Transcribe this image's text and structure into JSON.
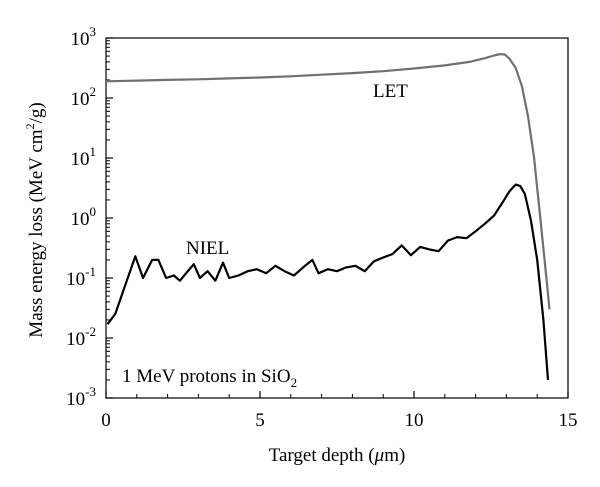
{
  "chart_data": {
    "type": "line",
    "xlabel_pre": "Target depth (",
    "xlabel_mu": "μ",
    "xlabel_post": "m)",
    "ylabel_pre": "Mass energy loss (MeV cm",
    "ylabel_sup": "2",
    "ylabel_post": "/g)",
    "annotation_pre": "1 MeV protons in SiO",
    "annotation_sub": "2",
    "xlim": [
      0,
      15
    ],
    "ylim_log10": [
      -3,
      3
    ],
    "y_scale": "log",
    "grid": false,
    "x_ticks": [
      "0",
      "5",
      "10",
      "15"
    ],
    "y_ticks": [
      {
        "base": "10",
        "exp": "3"
      },
      {
        "base": "10",
        "exp": "2"
      },
      {
        "base": "10",
        "exp": "1"
      },
      {
        "base": "10",
        "exp": "0"
      },
      {
        "base": "10",
        "exp": "-1"
      },
      {
        "base": "10",
        "exp": "-2"
      },
      {
        "base": "10",
        "exp": "-3"
      }
    ],
    "series": [
      {
        "name": "LET",
        "color": "#707070",
        "x": [
          0.0,
          1.0,
          2.0,
          3.0,
          4.0,
          5.0,
          6.0,
          7.0,
          8.0,
          9.0,
          10.0,
          11.0,
          11.8,
          12.3,
          12.6,
          12.8,
          12.95,
          13.1,
          13.3,
          13.5,
          13.7,
          13.9,
          14.1,
          14.3,
          14.4
        ],
        "y": [
          190,
          195,
          200,
          205,
          212,
          220,
          230,
          245,
          260,
          280,
          310,
          350,
          400,
          460,
          510,
          540,
          530,
          450,
          320,
          160,
          50,
          10,
          1,
          0.1,
          0.03
        ]
      },
      {
        "name": "NIEL",
        "color": "#000000",
        "x": [
          0.05,
          0.3,
          0.6,
          0.95,
          1.2,
          1.5,
          1.7,
          1.95,
          2.2,
          2.4,
          2.6,
          2.85,
          3.05,
          3.3,
          3.55,
          3.8,
          4.0,
          4.3,
          4.6,
          4.9,
          5.2,
          5.5,
          5.8,
          6.1,
          6.4,
          6.7,
          6.9,
          7.2,
          7.5,
          7.8,
          8.1,
          8.4,
          8.7,
          9.0,
          9.3,
          9.6,
          9.9,
          10.2,
          10.5,
          10.8,
          11.1,
          11.4,
          11.7,
          12.0,
          12.3,
          12.6,
          12.9,
          13.1,
          13.3,
          13.45,
          13.6,
          13.8,
          14.0,
          14.2,
          14.35
        ],
        "y": [
          0.017,
          0.025,
          0.07,
          0.23,
          0.1,
          0.2,
          0.2,
          0.1,
          0.11,
          0.09,
          0.12,
          0.17,
          0.1,
          0.13,
          0.09,
          0.18,
          0.1,
          0.11,
          0.13,
          0.14,
          0.12,
          0.16,
          0.13,
          0.11,
          0.15,
          0.2,
          0.12,
          0.14,
          0.13,
          0.15,
          0.16,
          0.13,
          0.19,
          0.22,
          0.25,
          0.35,
          0.24,
          0.33,
          0.3,
          0.28,
          0.42,
          0.48,
          0.46,
          0.6,
          0.8,
          1.1,
          1.9,
          2.8,
          3.6,
          3.4,
          2.5,
          0.9,
          0.2,
          0.02,
          0.002
        ]
      }
    ],
    "annotations": [
      {
        "text": "LET",
        "series": "LET"
      },
      {
        "text": "NIEL",
        "series": "NIEL"
      }
    ]
  }
}
